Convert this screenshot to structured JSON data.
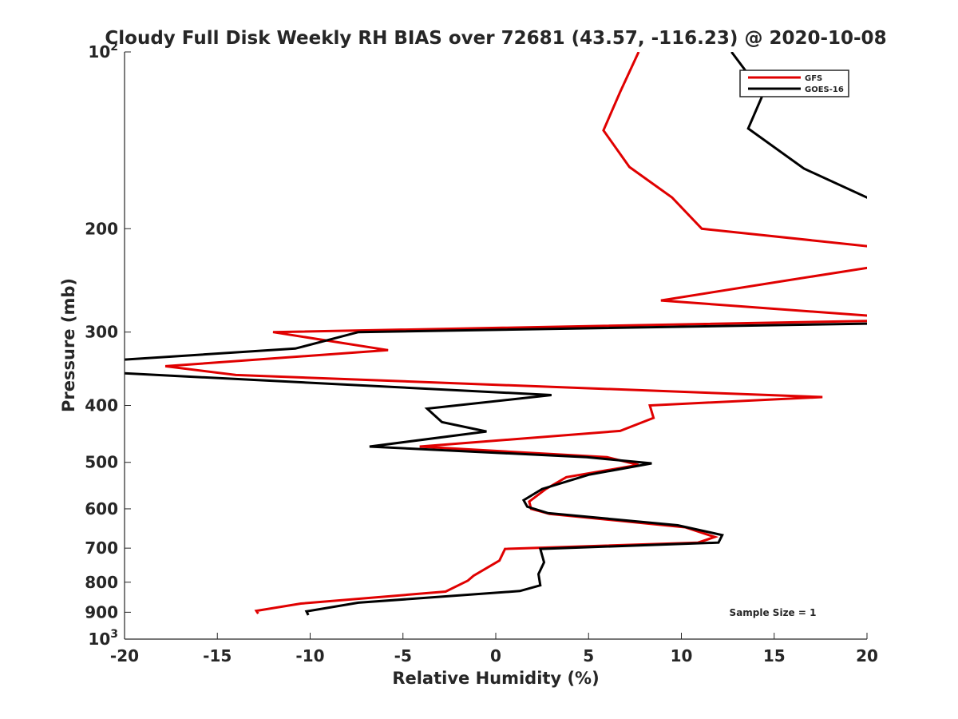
{
  "chart_data": {
    "type": "line",
    "title": "Cloudy Full Disk Weekly RH BIAS over 72681 (43.57, -116.23) @ 2020-10-08",
    "xlabel": "Relative Humidity (%)",
    "ylabel": "Pressure (mb)",
    "xlim": [
      -20,
      20
    ],
    "ylim": [
      100,
      1000
    ],
    "y_scale": "log",
    "y_reversed": true,
    "grid": false,
    "legend_location": "top-right",
    "x_ticks": [
      -20,
      -15,
      -10,
      -5,
      0,
      5,
      10,
      15,
      20
    ],
    "x_tick_labels": [
      "-20",
      "-15",
      "-10",
      "-5",
      "0",
      "5",
      "10",
      "15",
      "20"
    ],
    "y_ticks": [
      {
        "value": 100,
        "base": "10",
        "exp": "2"
      },
      {
        "value": 200,
        "label": "200"
      },
      {
        "value": 300,
        "label": "300"
      },
      {
        "value": 400,
        "label": "400"
      },
      {
        "value": 500,
        "label": "500"
      },
      {
        "value": 600,
        "label": "600"
      },
      {
        "value": 700,
        "label": "700"
      },
      {
        "value": 800,
        "label": "800"
      },
      {
        "value": 900,
        "label": "900"
      },
      {
        "value": 1000,
        "base": "10",
        "exp": "3"
      }
    ],
    "annotation": "Sample Size = 1",
    "series": [
      {
        "name": "GFS",
        "color": "#e00000",
        "points": [
          {
            "x": 7.7,
            "y": 100
          },
          {
            "x": 6.7,
            "y": 117
          },
          {
            "x": 5.8,
            "y": 136
          },
          {
            "x": 7.2,
            "y": 157
          },
          {
            "x": 9.5,
            "y": 177
          },
          {
            "x": 11.1,
            "y": 200
          },
          {
            "x": 20.5,
            "y": 215
          },
          {
            "x": 20.5,
            "y": 232
          },
          {
            "x": 15.7,
            "y": 245
          },
          {
            "x": 8.9,
            "y": 265
          },
          {
            "x": 20.5,
            "y": 282
          },
          {
            "x": 20.5,
            "y": 287
          },
          {
            "x": -12.0,
            "y": 300
          },
          {
            "x": -5.8,
            "y": 322
          },
          {
            "x": -17.8,
            "y": 343
          },
          {
            "x": -14.0,
            "y": 355
          },
          {
            "x": 17.6,
            "y": 387
          },
          {
            "x": 8.3,
            "y": 400
          },
          {
            "x": 8.5,
            "y": 420
          },
          {
            "x": 6.7,
            "y": 442
          },
          {
            "x": -4.1,
            "y": 470
          },
          {
            "x": 6.0,
            "y": 490
          },
          {
            "x": 7.7,
            "y": 505
          },
          {
            "x": 3.8,
            "y": 530
          },
          {
            "x": 2.7,
            "y": 555
          },
          {
            "x": 1.8,
            "y": 583
          },
          {
            "x": 1.9,
            "y": 600
          },
          {
            "x": 2.9,
            "y": 612
          },
          {
            "x": 10.2,
            "y": 645
          },
          {
            "x": 11.8,
            "y": 670
          },
          {
            "x": 10.9,
            "y": 685
          },
          {
            "x": 0.5,
            "y": 702
          },
          {
            "x": 0.2,
            "y": 735
          },
          {
            "x": -1.2,
            "y": 780
          },
          {
            "x": -1.5,
            "y": 795
          },
          {
            "x": -2.7,
            "y": 830
          },
          {
            "x": -10.5,
            "y": 870
          },
          {
            "x": -12.9,
            "y": 895
          },
          {
            "x": -12.8,
            "y": 905
          }
        ]
      },
      {
        "name": "GOES-16",
        "color": "#000000",
        "points": [
          {
            "x": 12.7,
            "y": 100
          },
          {
            "x": 14.4,
            "y": 118
          },
          {
            "x": 13.6,
            "y": 135
          },
          {
            "x": 16.6,
            "y": 158
          },
          {
            "x": 20.5,
            "y": 180
          },
          {
            "x": 20.5,
            "y": 290
          },
          {
            "x": -7.4,
            "y": 300
          },
          {
            "x": -10.8,
            "y": 320
          },
          {
            "x": -20.5,
            "y": 335
          },
          {
            "x": -20.5,
            "y": 352
          },
          {
            "x": 3.0,
            "y": 384
          },
          {
            "x": -3.7,
            "y": 405
          },
          {
            "x": -2.9,
            "y": 427
          },
          {
            "x": -0.5,
            "y": 443
          },
          {
            "x": -6.8,
            "y": 470
          },
          {
            "x": 4.9,
            "y": 490
          },
          {
            "x": 8.4,
            "y": 502
          },
          {
            "x": 5.0,
            "y": 525
          },
          {
            "x": 2.5,
            "y": 555
          },
          {
            "x": 1.5,
            "y": 580
          },
          {
            "x": 1.7,
            "y": 595
          },
          {
            "x": 2.8,
            "y": 610
          },
          {
            "x": 9.8,
            "y": 640
          },
          {
            "x": 12.2,
            "y": 665
          },
          {
            "x": 12.0,
            "y": 685
          },
          {
            "x": 2.4,
            "y": 702
          },
          {
            "x": 2.6,
            "y": 740
          },
          {
            "x": 2.3,
            "y": 775
          },
          {
            "x": 2.4,
            "y": 810
          },
          {
            "x": 1.3,
            "y": 828
          },
          {
            "x": -7.4,
            "y": 867
          },
          {
            "x": -10.2,
            "y": 897
          },
          {
            "x": -10.1,
            "y": 910
          }
        ]
      }
    ]
  }
}
